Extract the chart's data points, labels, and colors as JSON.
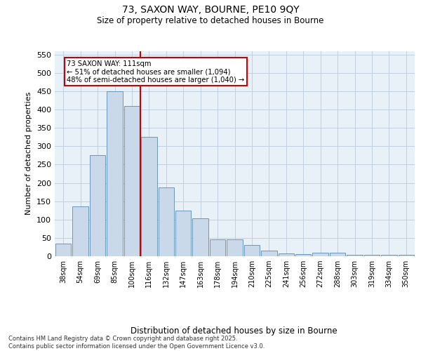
{
  "title_line1": "73, SAXON WAY, BOURNE, PE10 9QY",
  "title_line2": "Size of property relative to detached houses in Bourne",
  "xlabel": "Distribution of detached houses by size in Bourne",
  "ylabel": "Number of detached properties",
  "categories": [
    "38sqm",
    "54sqm",
    "69sqm",
    "85sqm",
    "100sqm",
    "116sqm",
    "132sqm",
    "147sqm",
    "163sqm",
    "178sqm",
    "194sqm",
    "210sqm",
    "225sqm",
    "241sqm",
    "256sqm",
    "272sqm",
    "288sqm",
    "303sqm",
    "319sqm",
    "334sqm",
    "350sqm"
  ],
  "values": [
    35,
    135,
    275,
    450,
    410,
    325,
    188,
    125,
    103,
    46,
    45,
    30,
    15,
    8,
    5,
    9,
    9,
    4,
    3,
    4,
    3
  ],
  "bar_color": "#c9d9ea",
  "bar_edge_color": "#5a8ab5",
  "grid_color": "#c0d0e0",
  "bg_color": "#e8f0f8",
  "vline_color": "#cc0000",
  "vline_x": 4.5,
  "annotation_text": "73 SAXON WAY: 111sqm\n← 51% of detached houses are smaller (1,094)\n48% of semi-detached houses are larger (1,040) →",
  "footnote": "Contains HM Land Registry data © Crown copyright and database right 2025.\nContains public sector information licensed under the Open Government Licence v3.0.",
  "ylim": [
    0,
    560
  ],
  "yticks": [
    0,
    50,
    100,
    150,
    200,
    250,
    300,
    350,
    400,
    450,
    500,
    550
  ]
}
